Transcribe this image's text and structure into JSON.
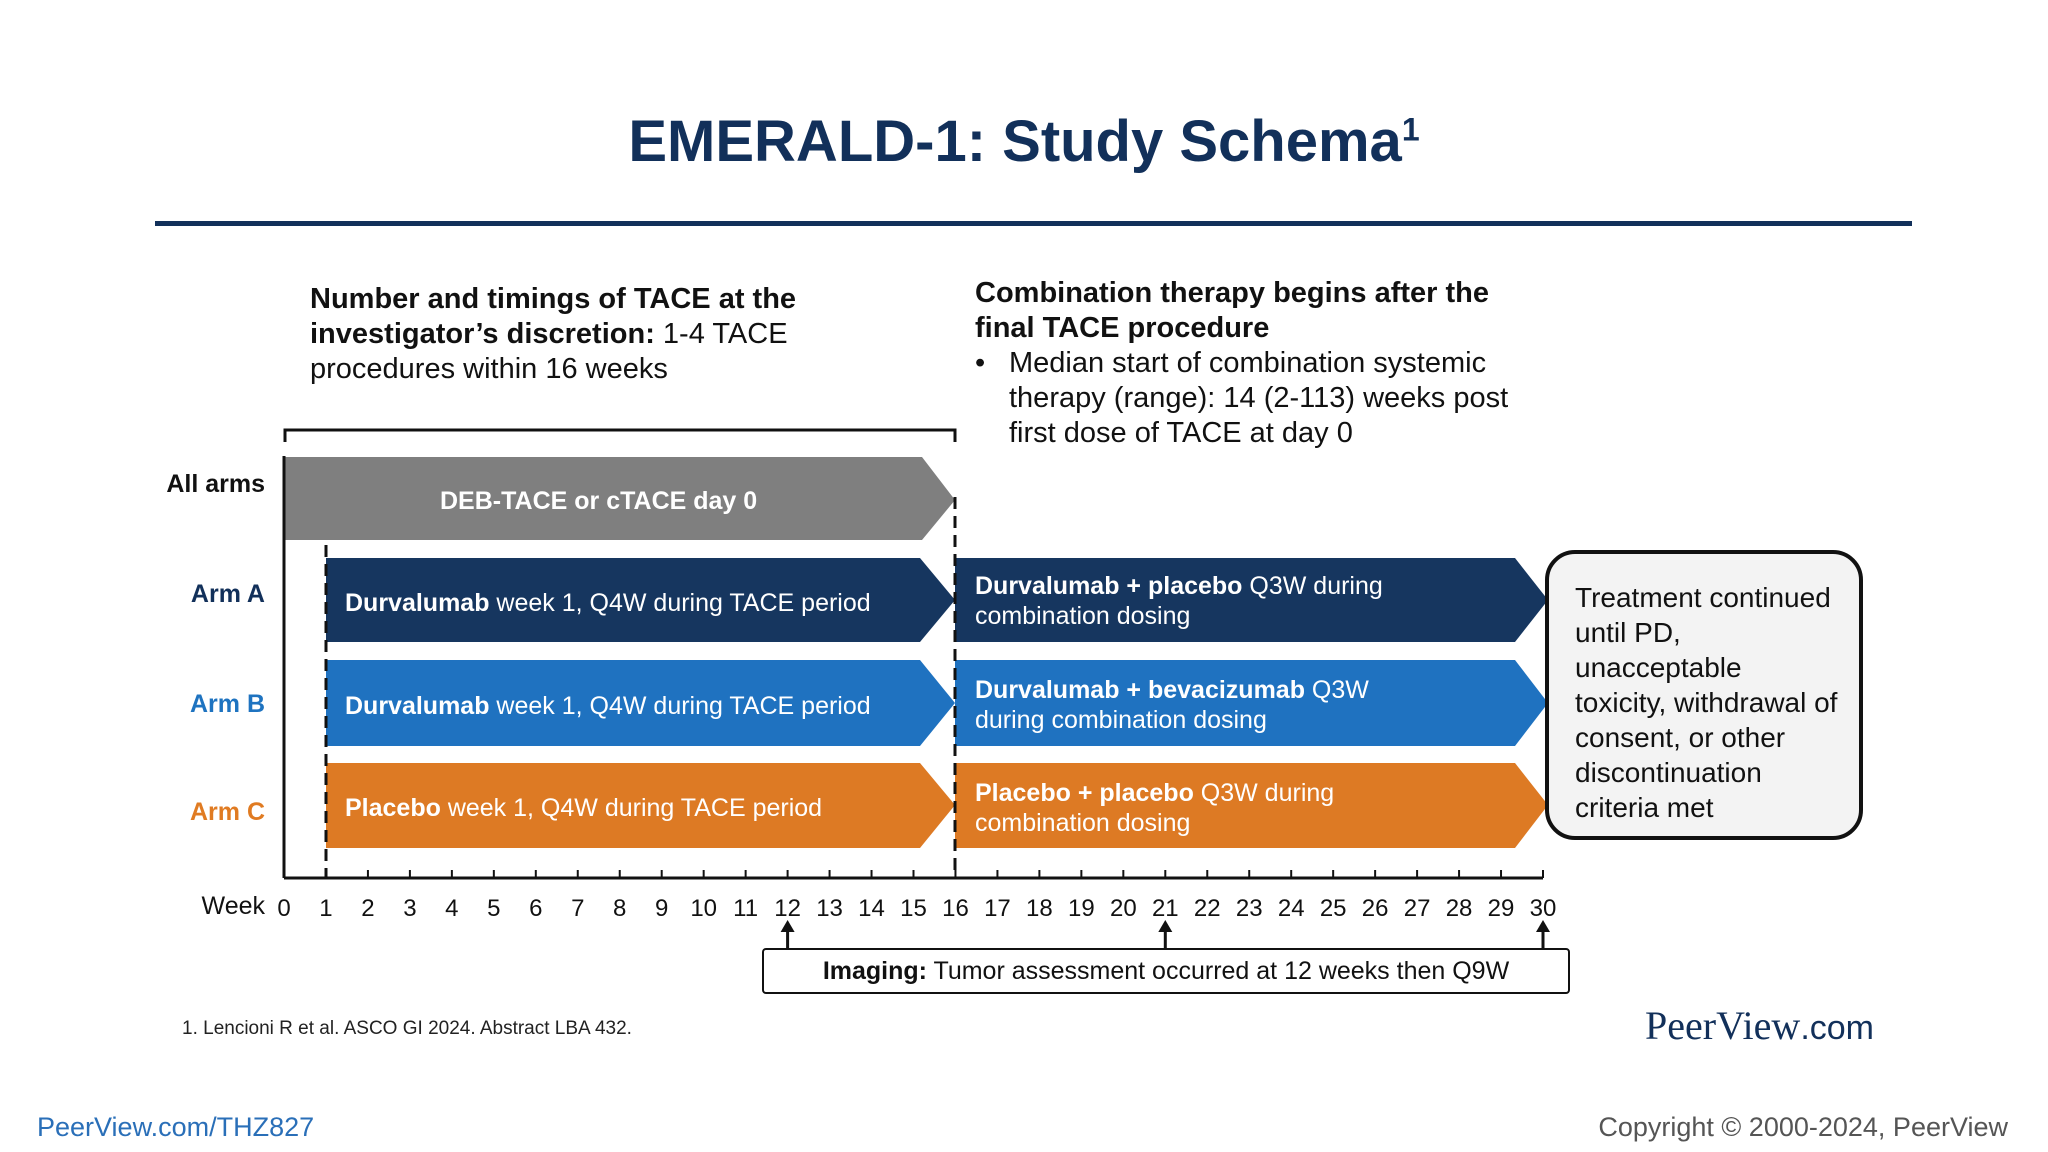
{
  "title": "EMERALD-1: Study Schema",
  "title_superscript": "1",
  "left_note": {
    "bold": "Number and timings of TACE at the investigator’s discretion:",
    "text": " 1-4 TACE procedures within 16 weeks"
  },
  "right_note": {
    "heading": "Combination therapy begins after the final TACE procedure",
    "bullet_symbol": "•",
    "bullet": "Median start of combination systemic therapy (range): 14 (2-113) weeks post first dose of TACE at day 0"
  },
  "rows": {
    "all": "All arms",
    "a": "Arm A",
    "b": "Arm B",
    "c": "Arm C"
  },
  "arrows": {
    "all_arms": "DEB-TACE or cTACE day 0",
    "arm_a_tace": {
      "bold": "Durvalumab",
      "text": " week 1, Q4W during TACE period"
    },
    "arm_b_tace": {
      "bold": "Durvalumab",
      "text": " week 1, Q4W during TACE period"
    },
    "arm_c_tace": {
      "bold": "Placebo",
      "text": " week 1, Q4W during TACE period"
    },
    "arm_a_combo": {
      "bold": "Durvalumab + placebo",
      "text": " Q3W during combination dosing"
    },
    "arm_b_combo": {
      "bold": "Durvalumab + bevacizumab",
      "text": " Q3W during combination dosing"
    },
    "arm_c_combo": {
      "bold": "Placebo + placebo",
      "text": " Q3W during combination dosing"
    }
  },
  "end_box": "Treatment continued until PD, unacceptable toxicity, withdrawal of consent, or other discontinuation criteria met",
  "axis": {
    "label": "Week",
    "ticks": [
      "0",
      "1",
      "2",
      "3",
      "4",
      "5",
      "6",
      "7",
      "8",
      "9",
      "10",
      "11",
      "12",
      "13",
      "14",
      "15",
      "16",
      "17",
      "18",
      "19",
      "20",
      "21",
      "22",
      "23",
      "24",
      "25",
      "26",
      "27",
      "28",
      "29",
      "30"
    ],
    "imaging_weeks": [
      12,
      21,
      30
    ]
  },
  "imaging": {
    "bold": "Imaging:",
    "text": " Tumor assessment occurred at 12 weeks then Q9W"
  },
  "footnote": "1. Lencioni R et al. ASCO GI 2024. Abstract LBA 432.",
  "brand": {
    "name": "PeerView",
    "suffix": ".com"
  },
  "url": "PeerView.com/THZ827",
  "copyright": "Copyright © 2000-2024, PeerView",
  "colors": {
    "navy": "#12305a",
    "arm_a": "#16365f",
    "arm_b": "#1f72c0",
    "arm_c": "#dd7a24",
    "all_arms": "#7f7f7f"
  }
}
